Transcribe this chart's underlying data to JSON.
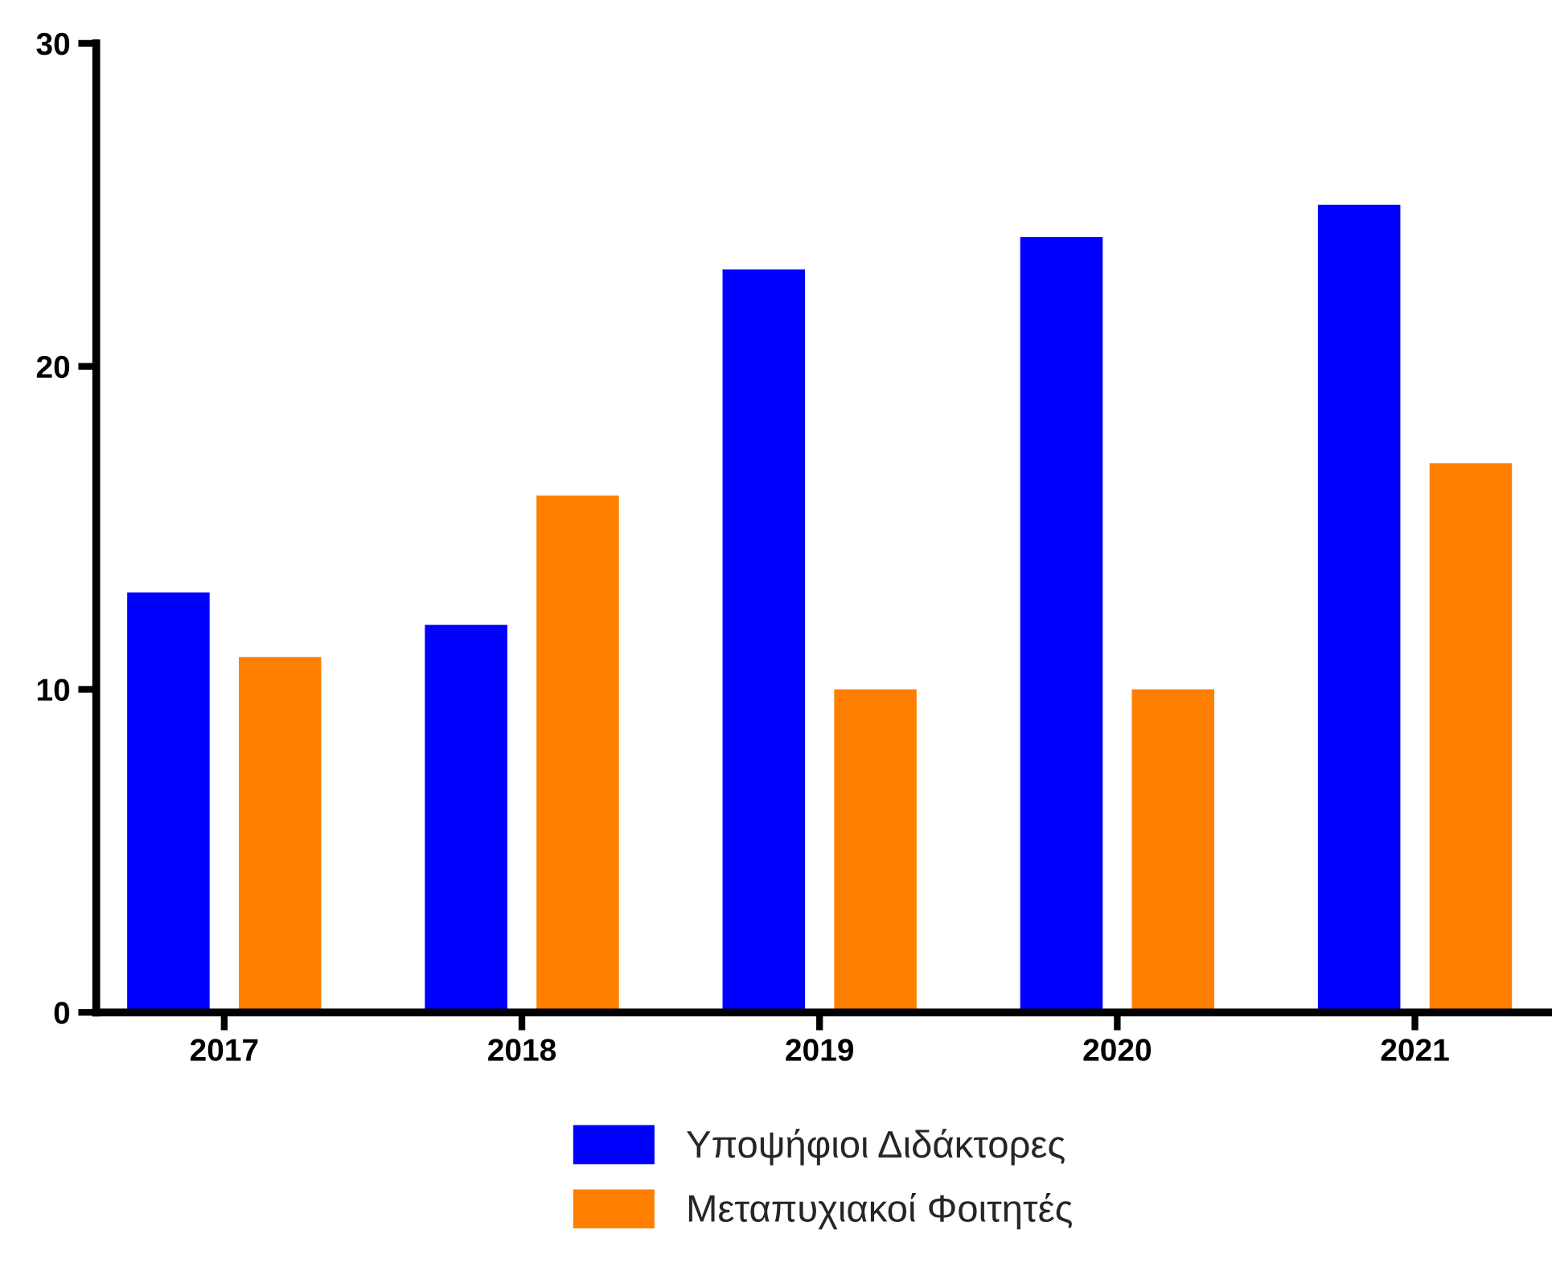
{
  "chart_data": {
    "type": "bar",
    "categories": [
      "2017",
      "2018",
      "2019",
      "2020",
      "2021"
    ],
    "series": [
      {
        "name": "Υποψήφιοι Διδάκτορες",
        "color": "#0000ff",
        "values": [
          13,
          12,
          23,
          24,
          25
        ]
      },
      {
        "name": "Μεταπυχιακοί Φοιτητές",
        "color": "#ff8000",
        "values": [
          11,
          16,
          10,
          10,
          17
        ]
      }
    ],
    "ylim": [
      0,
      30
    ],
    "yticks": [
      0,
      10,
      20,
      30
    ],
    "grid": false,
    "legend": "bottom"
  }
}
